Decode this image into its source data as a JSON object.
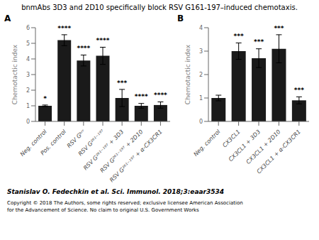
{
  "title": "bnmAbs 3D3 and 2D10 specifically block RSV G161-197–induced chemotaxis.",
  "annotations": [
    "Stanislav O. Fedechkin et al. Sci. Immunol. 2018;3:eaar3534",
    "Copyright © 2018 The Authors, some rights reserved; exclusive licensee American Association\nfor the Advancement of Science. No claim to original U.S. Government Works"
  ],
  "chart_data": [
    {
      "type": "bar",
      "subtitle": "A",
      "ylabel": "Chemotactic index",
      "categories": [
        "Neg. control",
        "Pos. control",
        "RSV Gᵇʳʳ",
        "RSV G²⁶¹⁻¹⁹⁷",
        "RSV G²⁶¹⁻¹⁹⁷ + 3D3",
        "RSV G²⁶¹⁻¹⁹⁷ + 2D10",
        "RSV G²⁶¹⁻¹⁹⁷ + α-CX3CR1"
      ],
      "values": [
        1.0,
        5.2,
        3.9,
        4.2,
        1.5,
        1.0,
        1.05
      ],
      "errors": [
        0.05,
        0.35,
        0.35,
        0.55,
        0.55,
        0.15,
        0.2
      ],
      "significance": [
        "*",
        "****",
        "****",
        "****",
        "***",
        "****",
        "****"
      ],
      "color": "#1a1a1a",
      "ylim": [
        0,
        6
      ],
      "yticks": [
        0,
        1,
        2,
        3,
        4,
        5,
        6
      ],
      "grid": false
    },
    {
      "type": "bar",
      "subtitle": "B",
      "ylabel": "Chemotactic index",
      "categories": [
        "Neg. control",
        "CX3CL1",
        "CX3CL1 + 3D3",
        "CX3CL1 + 2D10",
        "CX3CL1 + α-CX3CR1"
      ],
      "values": [
        1.0,
        3.0,
        2.7,
        3.1,
        0.9
      ],
      "errors": [
        0.12,
        0.35,
        0.4,
        0.6,
        0.15
      ],
      "significance": [
        null,
        "***",
        "***",
        "***",
        "***"
      ],
      "color": "#1a1a1a",
      "ylim": [
        0,
        4
      ],
      "yticks": [
        0,
        1,
        2,
        3,
        4
      ],
      "grid": false
    }
  ]
}
